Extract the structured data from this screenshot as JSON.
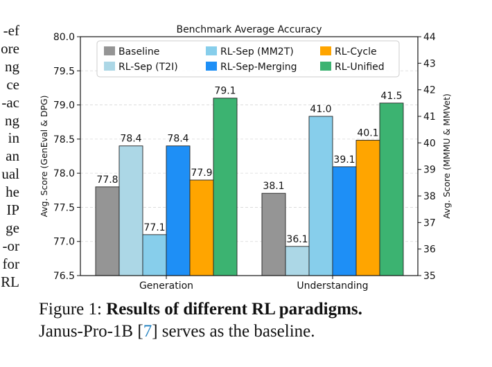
{
  "side_text": {
    "lines": [
      "ef-",
      "ore",
      "ng",
      "ce",
      "ac-",
      "ng",
      "in",
      "an",
      "ual",
      "he",
      "IP",
      "ge",
      "or-",
      "for",
      "RL"
    ]
  },
  "chart_data": {
    "type": "bar",
    "title": "Benchmark Average Accuracy",
    "categories": [
      "Generation",
      "Understanding"
    ],
    "left_axis": {
      "label": "Avg. Score (GenEval & DPG)",
      "ylim": [
        76.5,
        80.0
      ],
      "ticks": [
        "76.5",
        "77.0",
        "77.5",
        "78.0",
        "78.5",
        "79.0",
        "79.5",
        "80.0"
      ]
    },
    "right_axis": {
      "label": "Avg. Score (MMMU & MMVet)",
      "ylim": [
        35,
        44
      ],
      "ticks": [
        "35",
        "36",
        "37",
        "38",
        "39",
        "40",
        "41",
        "42",
        "43",
        "44"
      ]
    },
    "series": [
      {
        "name": "Baseline",
        "color": "#959595",
        "generation": 77.8,
        "understanding": 38.1,
        "generation_label": "77.8",
        "understanding_label": "38.1"
      },
      {
        "name": "RL-Sep (T2I)",
        "color": "#acd7e6",
        "generation": 78.4,
        "understanding": 36.1,
        "generation_label": "78.4",
        "understanding_label": "36.1"
      },
      {
        "name": "RL-Sep (MM2T)",
        "color": "#87ceeb",
        "generation": 77.1,
        "understanding": 41.0,
        "generation_label": "77.1",
        "understanding_label": "41.0"
      },
      {
        "name": "RL-Sep-Merging",
        "color": "#1e8ff6",
        "generation": 78.4,
        "understanding": 39.1,
        "generation_label": "78.4",
        "understanding_label": "39.1"
      },
      {
        "name": "RL-Cycle",
        "color": "#ffa500",
        "generation": 77.9,
        "understanding": 40.1,
        "generation_label": "77.9",
        "understanding_label": "40.1"
      },
      {
        "name": "RL-Unified",
        "color": "#3cb371",
        "generation": 79.1,
        "understanding": 41.5,
        "generation_label": "79.1",
        "understanding_label": "41.5"
      }
    ],
    "grid": "horizontal dashed",
    "legend_placement": "top"
  },
  "caption": {
    "prefix": "Figure 1: ",
    "bold": "Results of different RL paradigms.",
    "line2_a": "Janus-Pro-1B [",
    "ref": "7",
    "line2_b": "] serves as the baseline."
  }
}
